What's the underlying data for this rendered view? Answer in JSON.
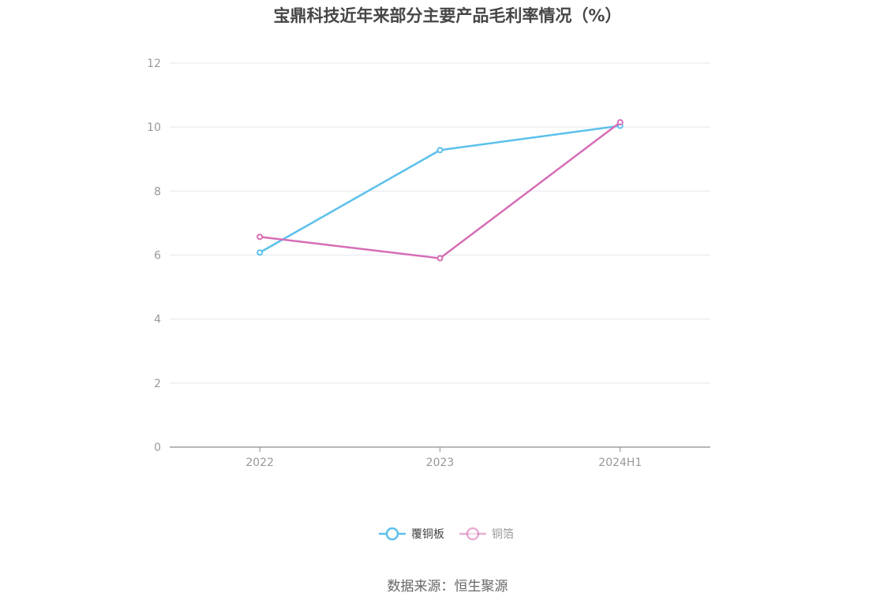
{
  "chart_data": {
    "type": "line",
    "title": "宝鼎科技近年来部分主要产品毛利率情况（%）",
    "categories": [
      "2022",
      "2023",
      "2024H1"
    ],
    "series": [
      {
        "name": "覆铜板",
        "values": [
          6.08,
          9.28,
          10.04
        ],
        "color": "#5bc0eb"
      },
      {
        "name": "铜箔",
        "values": [
          6.57,
          5.9,
          10.15
        ],
        "color": "#d66db6"
      }
    ],
    "ylim": [
      0,
      12
    ],
    "yticks": [
      0,
      2,
      4,
      6,
      8,
      10,
      12
    ],
    "xlabel": "",
    "ylabel": "",
    "grid": true,
    "legend": "bottom-center"
  },
  "source": "数据来源：恒生聚源"
}
